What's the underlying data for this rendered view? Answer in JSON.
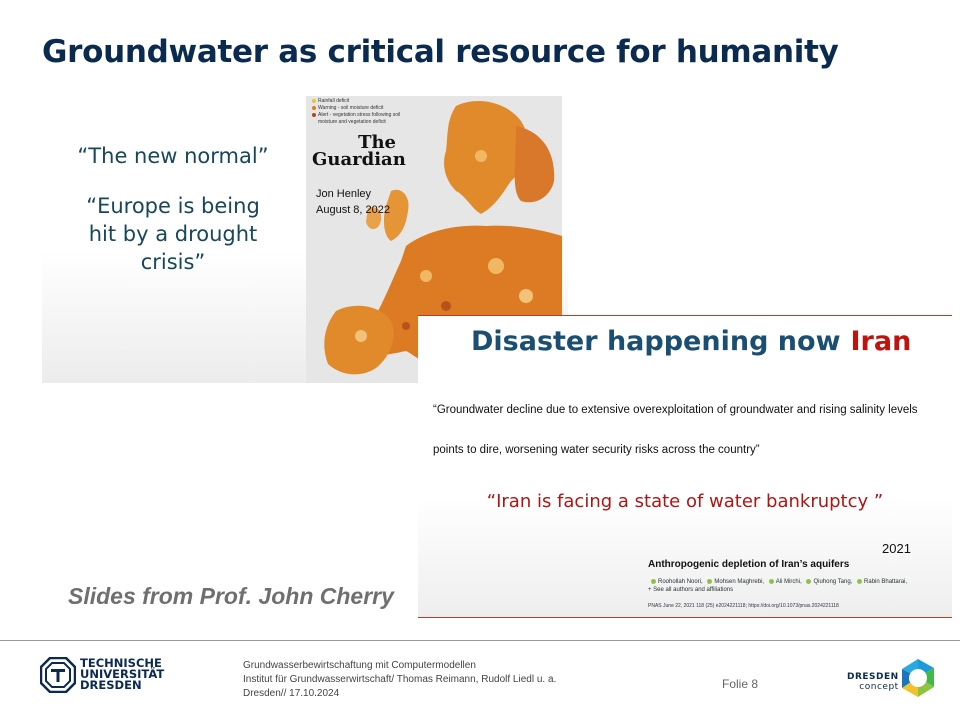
{
  "slide": {
    "title": "Groundwater as critical resource for humanity",
    "credit": "Slides from Prof. John Cherry"
  },
  "europe_panel": {
    "quote1": "“The new normal”",
    "quote2": "“Europe is being hit by a drought crisis”",
    "legend": [
      {
        "label": "Rainfall deficit",
        "color": "#e8c52a"
      },
      {
        "label": "Warning - soil moisture deficit",
        "color": "#e07b20"
      },
      {
        "label": "Alert - vegetation stress following soil moisture and vegetation deficit",
        "color": "#b0481a"
      }
    ],
    "guardian_line1": "The",
    "guardian_line2": "Guardian",
    "author": "Jon Henley",
    "date": "August 8, 2022"
  },
  "iran_panel": {
    "heading": "Disaster happening now",
    "heading_highlight": "Iran",
    "quote": "“Groundwater decline due to extensive overexploitation of  groundwater and rising salinity levels  points to dire, worsening water security risks across the country”",
    "red_quote": "“Iran is facing a state of water bankruptcy ”",
    "year": "2021",
    "paper_title": "Anthropogenic depletion of Iran’s aquifers",
    "authors": [
      "Roohollah Noori,",
      "Mohsen Maghrebi,",
      "Ali Mirchi,",
      "Qiuhong Tang,",
      "Rabin Bhattarai,"
    ],
    "authors_more": "+ See all authors and affiliations",
    "reference": "PNAS June 22, 2021 118 (25) e2024221118; https://doi.org/10.1073/pnas.2024221118"
  },
  "footer": {
    "university_line1": "TECHNISCHE",
    "university_line2": "UNIVERSITÄT",
    "university_line3": "DRESDEN",
    "course": "Grundwasserbewirtschaftung mit Computermodellen",
    "institute": "Institut für Grundwasserwirtschaft/ Thomas Reimann, Rudolf Liedl u. a.",
    "place_date": "Dresden// 17.10.2024",
    "slide_number": "Folie 8",
    "concept_line1": "DRESDEN",
    "concept_line2": "concept"
  }
}
